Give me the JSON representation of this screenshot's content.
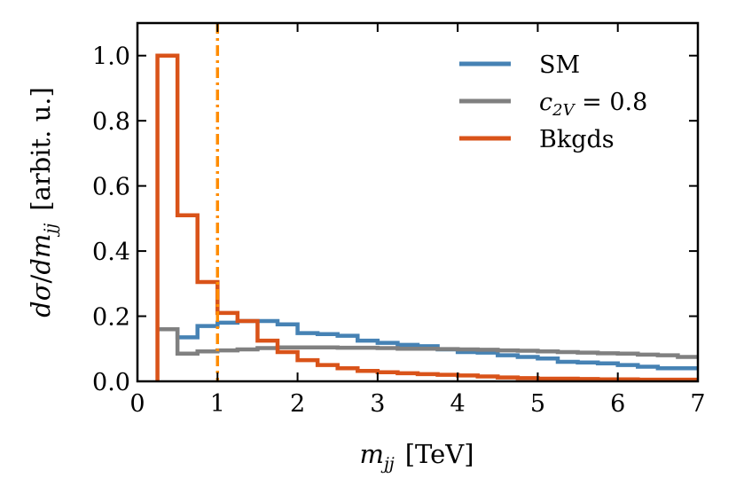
{
  "chart_data": {
    "type": "step-histogram",
    "title": "",
    "xlabel": "m_jj [TeV]",
    "ylabel": "dσ/dm_jj [arbit. u.]",
    "xlabel_parts": {
      "var": "m",
      "sub": "jj",
      "unit": "[TeV]"
    },
    "ylabel_parts": {
      "num": "dσ",
      "slash": "/",
      "den": "dm",
      "sub": "jj",
      "unit": "[arbit. u.]"
    },
    "xlim": [
      0,
      7
    ],
    "ylim": [
      0,
      1.1
    ],
    "xticks": [
      0,
      1,
      2,
      3,
      4,
      5,
      6,
      7
    ],
    "xtick_labels": [
      "0",
      "1",
      "2",
      "3",
      "4",
      "5",
      "6",
      "7"
    ],
    "yticks": [
      0.0,
      0.2,
      0.4,
      0.6,
      0.8,
      1.0
    ],
    "ytick_labels": [
      "0.0",
      "0.2",
      "0.4",
      "0.6",
      "0.8",
      "1.0"
    ],
    "bin_edges": [
      0.25,
      0.5,
      0.75,
      1.0,
      1.25,
      1.5,
      1.75,
      2.0,
      2.25,
      2.5,
      2.75,
      3.0,
      3.25,
      3.5,
      3.75,
      4.0,
      4.25,
      4.5,
      4.75,
      5.0,
      5.25,
      5.5,
      5.75,
      6.0,
      6.25,
      6.5,
      6.75,
      7.0
    ],
    "series": [
      {
        "name": "SM",
        "color": "#4682b4",
        "values": [
          0.16,
          0.135,
          0.17,
          0.18,
          0.185,
          0.185,
          0.175,
          0.148,
          0.145,
          0.14,
          0.125,
          0.118,
          0.112,
          0.108,
          0.098,
          0.09,
          0.088,
          0.08,
          0.075,
          0.07,
          0.06,
          0.058,
          0.055,
          0.05,
          0.045,
          0.04,
          0.04
        ]
      },
      {
        "name": "c_2V = 0.8",
        "legend_parts": {
          "var": "c",
          "sub": "2V",
          "rest": " = 0.8"
        },
        "color": "#808080",
        "values": [
          0.16,
          0.085,
          0.092,
          0.095,
          0.098,
          0.102,
          0.104,
          0.104,
          0.104,
          0.103,
          0.103,
          0.102,
          0.1,
          0.1,
          0.099,
          0.098,
          0.097,
          0.095,
          0.094,
          0.092,
          0.09,
          0.088,
          0.086,
          0.085,
          0.082,
          0.08,
          0.075
        ]
      },
      {
        "name": "Bkgds",
        "color": "#d95319",
        "values": [
          1.0,
          0.51,
          0.305,
          0.21,
          0.185,
          0.125,
          0.09,
          0.065,
          0.05,
          0.04,
          0.032,
          0.028,
          0.025,
          0.022,
          0.02,
          0.018,
          0.015,
          0.012,
          0.01,
          0.008,
          0.008,
          0.007,
          0.006,
          0.006,
          0.005,
          0.005,
          0.005
        ]
      }
    ],
    "vline": {
      "x": 1.0,
      "color": "#ff8c00",
      "style": "dash-dot"
    },
    "legend": {
      "position": "top-right",
      "entries": [
        "SM",
        "c_2V = 0.8",
        "Bkgds"
      ]
    }
  }
}
